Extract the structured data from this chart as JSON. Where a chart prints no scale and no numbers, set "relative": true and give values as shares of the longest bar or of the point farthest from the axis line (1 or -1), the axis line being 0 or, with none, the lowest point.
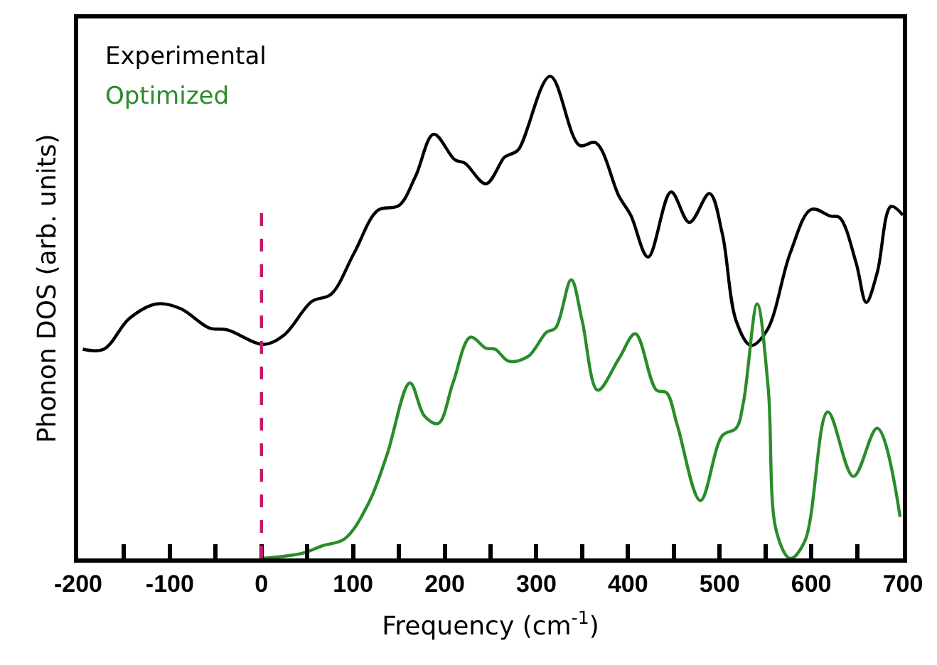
{
  "chart_data": {
    "type": "line",
    "relative": true,
    "xlabel": "Frequency (cm$^{-1}$)",
    "ylabel": "Phonon DOS (arb. units)",
    "xlim": [
      -200,
      700
    ],
    "xticks": [
      -200,
      {
        "value": -150,
        "label": null
      },
      -100,
      {
        "value": -50,
        "label": null
      },
      0,
      {
        "value": 50,
        "label": null
      },
      100,
      {
        "value": 150,
        "label": null
      },
      200,
      {
        "value": 250,
        "label": null
      },
      300,
      {
        "value": 350,
        "label": null
      },
      400,
      {
        "value": 450,
        "label": null
      },
      500,
      {
        "value": 550,
        "label": null
      },
      600,
      {
        "value": 650,
        "label": null
      },
      700
    ],
    "legend": "top left",
    "marker": "none",
    "line_style": "solid",
    "tick_labels": "x",
    "ref_lines": [
      {
        "axis": "x",
        "value": 0,
        "label": null,
        "color": "#c8186e",
        "line_style": "dashed"
      }
    ],
    "series": [
      {
        "name": "Experimental",
        "color": "#000000",
        "x": [
          -195,
          -172,
          -144,
          -114,
          -88,
          -57,
          -37,
          2,
          25,
          55,
          76,
          101,
          127,
          150,
          168,
          188,
          211,
          222,
          245,
          265,
          270,
          280,
          315,
          347,
          365,
          390,
          403,
          422,
          447,
          467,
          489,
          503,
          518,
          534,
          552,
          577,
          600,
          621,
          631,
          649,
          660,
          672,
          687,
          700
        ],
        "values": [
          0.434,
          0.434,
          0.498,
          0.528,
          0.518,
          0.478,
          0.474,
          0.444,
          0.464,
          0.533,
          0.548,
          0.633,
          0.722,
          0.732,
          0.792,
          0.88,
          0.827,
          0.82,
          0.777,
          0.832,
          0.837,
          0.847,
          1.0,
          0.857,
          0.862,
          0.752,
          0.712,
          0.625,
          0.76,
          0.697,
          0.757,
          0.673,
          0.493,
          0.442,
          0.474,
          0.633,
          0.724,
          0.71,
          0.707,
          0.613,
          0.531,
          0.593,
          0.73,
          0.712
        ]
      },
      {
        "name": "Optimized",
        "color": "#2a8c2a",
        "x": [
          0,
          45,
          66,
          91,
          117,
          137,
          162,
          178,
          193,
          209,
          228,
          245,
          255,
          270,
          291,
          311,
          321,
          338,
          350,
          367,
          390,
          408,
          431,
          442,
          454,
          479,
          503,
          518,
          526,
          541,
          553,
          562,
          577,
          593,
          618,
          646,
          672,
          697
        ],
        "values": [
          0.0,
          0.011,
          0.026,
          0.041,
          0.115,
          0.215,
          0.364,
          0.295,
          0.28,
          0.364,
          0.459,
          0.436,
          0.434,
          0.409,
          0.419,
          0.469,
          0.478,
          0.578,
          0.493,
          0.349,
          0.414,
          0.466,
          0.349,
          0.344,
          0.275,
          0.12,
          0.255,
          0.27,
          0.324,
          0.528,
          0.354,
          0.056,
          0.0,
          0.036,
          0.304,
          0.17,
          0.27,
          0.086
        ]
      }
    ]
  }
}
